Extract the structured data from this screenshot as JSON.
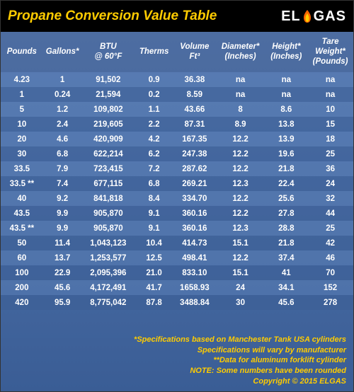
{
  "header": {
    "title": "Propane Conversion Value Table",
    "logo_text": "ELGAS"
  },
  "table": {
    "columns": [
      "Pounds",
      "Gallons*",
      "BTU\n@ 60°F",
      "Therms",
      "Volume\nFt³",
      "Diameter*\n(Inches)",
      "Height*\n(Inches)",
      "Tare\nWeight*\n(Pounds)"
    ],
    "col_widths": [
      "12%",
      "11%",
      "15%",
      "11%",
      "12%",
      "14%",
      "12%",
      "13%"
    ],
    "rows": [
      [
        "4.23",
        "1",
        "91,502",
        "0.9",
        "36.38",
        "na",
        "na",
        "na"
      ],
      [
        "1",
        "0.24",
        "21,594",
        "0.2",
        "8.59",
        "na",
        "na",
        "na"
      ],
      [
        "5",
        "1.2",
        "109,802",
        "1.1",
        "43.66",
        "8",
        "8.6",
        "10"
      ],
      [
        "10",
        "2.4",
        "219,605",
        "2.2",
        "87.31",
        "8.9",
        "13.8",
        "15"
      ],
      [
        "20",
        "4.6",
        "420,909",
        "4.2",
        "167.35",
        "12.2",
        "13.9",
        "18"
      ],
      [
        "30",
        "6.8",
        "622,214",
        "6.2",
        "247.38",
        "12.2",
        "19.6",
        "25"
      ],
      [
        "33.5",
        "7.9",
        "723,415",
        "7.2",
        "287.62",
        "12.2",
        "21.8",
        "36"
      ],
      [
        "33.5 **",
        "7.4",
        "677,115",
        "6.8",
        "269.21",
        "12.3",
        "22.4",
        "24"
      ],
      [
        "40",
        "9.2",
        "841,818",
        "8.4",
        "334.70",
        "12.2",
        "25.6",
        "32"
      ],
      [
        "43.5",
        "9.9",
        "905,870",
        "9.1",
        "360.16",
        "12.2",
        "27.8",
        "44"
      ],
      [
        "43.5 **",
        "9.9",
        "905,870",
        "9.1",
        "360.16",
        "12.3",
        "28.8",
        "25"
      ],
      [
        "50",
        "11.4",
        "1,043,123",
        "10.4",
        "414.73",
        "15.1",
        "21.8",
        "42"
      ],
      [
        "60",
        "13.7",
        "1,253,577",
        "12.5",
        "498.41",
        "12.2",
        "37.4",
        "46"
      ],
      [
        "100",
        "22.9",
        "2,095,396",
        "21.0",
        "833.10",
        "15.1",
        "41",
        "70"
      ],
      [
        "200",
        "45.6",
        "4,172,491",
        "41.7",
        "1658.93",
        "24",
        "34.1",
        "152"
      ],
      [
        "420",
        "95.9",
        "8,775,042",
        "87.8",
        "3488.84",
        "30",
        "45.6",
        "278"
      ]
    ]
  },
  "footer": {
    "lines": [
      "*Specifications based on Manchester Tank USA cylinders",
      "Specifications will vary by manufacturer",
      "**Data for aluminum forklift cylinder",
      "NOTE: Some numbers have been rounded",
      "Copyright © 2015 ELGAS"
    ]
  },
  "colors": {
    "title": "#ffcc00",
    "footer": "#ffcc00",
    "text": "#ffffff",
    "header_bg": "#000000"
  }
}
